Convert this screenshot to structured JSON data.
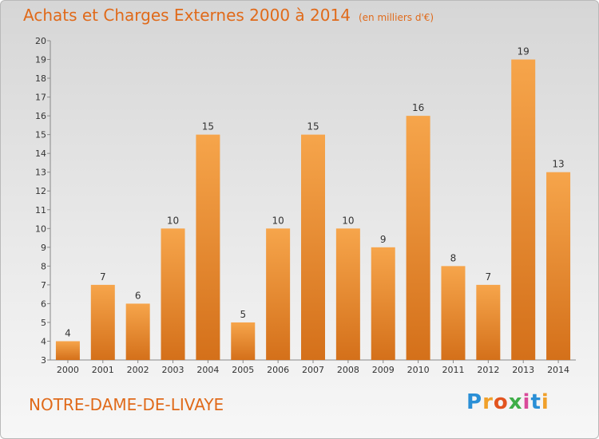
{
  "title": "Achats et Charges Externes 2000 à 2014",
  "unit": "(en milliers d'€)",
  "place": "NOTRE-DAME-DE-LIVAYE",
  "logo": {
    "letters": [
      "P",
      "r",
      "o",
      "x",
      "i",
      "t",
      "i"
    ],
    "colors": [
      "#2a8fd6",
      "#f0a02a",
      "#e2541f",
      "#3fae49",
      "#d94a9a",
      "#2a8fd6",
      "#f0a02a"
    ]
  },
  "colors": {
    "bar_top": "#f6a54b",
    "bar_bottom": "#d4701a",
    "accent": "#e06a1a"
  },
  "chart_data": {
    "type": "bar",
    "categories": [
      "2000",
      "2001",
      "2002",
      "2003",
      "2004",
      "2005",
      "2006",
      "2007",
      "2008",
      "2009",
      "2010",
      "2011",
      "2012",
      "2013",
      "2014"
    ],
    "values": [
      4,
      7,
      6,
      10,
      15,
      5,
      10,
      15,
      10,
      9,
      16,
      8,
      7,
      19,
      13
    ],
    "title": "Achats et Charges Externes 2000 à 2014",
    "xlabel": "",
    "ylabel": "",
    "ylim": [
      3,
      20
    ],
    "yticks": [
      3,
      4,
      5,
      6,
      7,
      8,
      9,
      10,
      11,
      12,
      13,
      14,
      15,
      16,
      17,
      18,
      19,
      20
    ],
    "grid": false,
    "legend": "none"
  }
}
